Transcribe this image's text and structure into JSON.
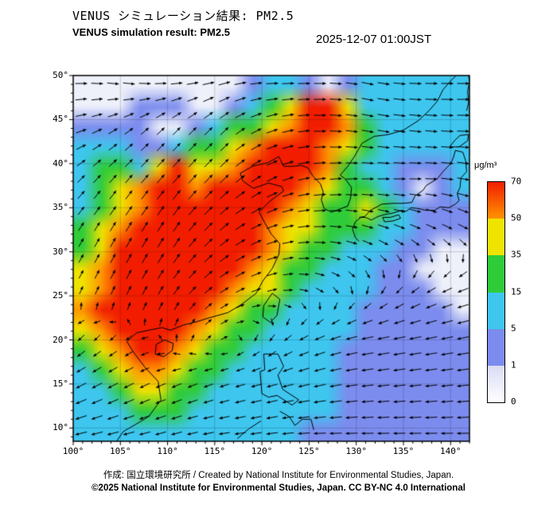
{
  "header": {
    "title_ja": "VENUS シミュレーション結果: PM2.5",
    "title_en": "VENUS simulation result: PM2.5",
    "timestamp": "2025-12-07 01:00JST"
  },
  "footer": {
    "credit": "作成: 国立環境研究所 / Created by National Institute for Environmental Studies, Japan.",
    "copyright": "©2025 National Institute for Environmental Studies, Japan. CC BY-NC 4.0 International"
  },
  "colorbar": {
    "unit": "μg/m³",
    "levels": [
      0,
      1,
      5,
      15,
      35,
      50,
      70
    ],
    "segment_colors": [
      [
        "#ffffff",
        "#d9dbf6"
      ],
      [
        "#7c8cee",
        "#7c8cee"
      ],
      [
        "#3ec6ef",
        "#3ec6ef"
      ],
      [
        "#2fcc3a",
        "#2fcc3a"
      ],
      [
        "#efe300",
        "#efe300"
      ],
      [
        "#ff9400",
        "#f21d00"
      ]
    ]
  },
  "chart_data": {
    "type": "heatmap",
    "overlay": "wind-quiver",
    "variable": "PM2.5",
    "units": "μg/m³",
    "title": "VENUS simulation result: PM2.5",
    "timestamp": "2025-12-07 01:00JST",
    "lon_range": [
      100,
      142
    ],
    "lat_range": [
      8.5,
      50
    ],
    "x_tick_labels": [
      "100°",
      "105°",
      "110°",
      "115°",
      "120°",
      "125°",
      "130°",
      "135°",
      "140°"
    ],
    "y_tick_labels": [
      "50°",
      "45°",
      "40°",
      "35°",
      "30°",
      "25°",
      "20°",
      "15°",
      "10°"
    ],
    "class_breaks": [
      1,
      5,
      15,
      35,
      50,
      70
    ],
    "class_colors": [
      "#eef0fa",
      "#7c8cee",
      "#3ec6ef",
      "#2fcc3a",
      "#efe300",
      "#ff9400",
      "#f21d00"
    ],
    "grid": {
      "comment": "PM2.5 concentration (μg/m³), rows north(lat 50) to south(lat 8.5), cols lon 100 to 142",
      "values": [
        [
          0.5,
          0.5,
          0.5,
          0.5,
          0.5,
          0.5,
          0.5,
          0.5,
          0.5,
          3,
          8,
          8,
          3,
          0.5,
          3,
          8,
          10,
          10,
          8,
          8,
          8
        ],
        [
          0.5,
          0.5,
          0.5,
          3,
          3,
          3,
          0.5,
          0.5,
          3,
          10,
          25,
          42,
          85,
          85,
          42,
          10,
          10,
          10,
          8,
          8,
          8
        ],
        [
          3,
          3,
          3,
          3,
          0.5,
          0.5,
          3,
          10,
          25,
          25,
          42,
          60,
          85,
          85,
          60,
          25,
          10,
          8,
          8,
          8,
          8
        ],
        [
          8,
          10,
          8,
          3,
          3,
          10,
          25,
          25,
          42,
          60,
          85,
          85,
          85,
          60,
          42,
          25,
          10,
          8,
          8,
          10,
          10
        ],
        [
          10,
          25,
          25,
          10,
          42,
          85,
          42,
          42,
          60,
          85,
          85,
          85,
          85,
          60,
          25,
          10,
          8,
          3,
          3,
          3,
          8
        ],
        [
          10,
          25,
          42,
          60,
          85,
          85,
          60,
          85,
          85,
          85,
          85,
          85,
          60,
          42,
          25,
          25,
          10,
          3,
          0.5,
          3,
          8
        ],
        [
          10,
          25,
          42,
          60,
          85,
          85,
          85,
          85,
          85,
          85,
          85,
          60,
          42,
          25,
          25,
          42,
          25,
          10,
          3,
          3,
          3
        ],
        [
          25,
          42,
          60,
          85,
          85,
          85,
          85,
          85,
          85,
          85,
          60,
          42,
          42,
          25,
          25,
          25,
          10,
          8,
          3,
          3,
          3
        ],
        [
          25,
          42,
          85,
          85,
          85,
          85,
          85,
          85,
          85,
          85,
          60,
          42,
          25,
          25,
          10,
          10,
          8,
          3,
          3,
          0.5,
          0.5
        ],
        [
          42,
          60,
          85,
          85,
          85,
          85,
          85,
          85,
          85,
          60,
          42,
          25,
          25,
          10,
          10,
          8,
          3,
          3,
          0.5,
          0.5,
          0.5
        ],
        [
          42,
          60,
          85,
          85,
          85,
          85,
          85,
          85,
          60,
          42,
          42,
          25,
          10,
          10,
          8,
          8,
          3,
          3,
          3,
          0.5,
          0.5
        ],
        [
          60,
          85,
          85,
          85,
          85,
          85,
          85,
          60,
          42,
          25,
          25,
          10,
          10,
          8,
          8,
          3,
          3,
          3,
          3,
          3,
          0.5
        ],
        [
          42,
          60,
          85,
          85,
          85,
          85,
          60,
          42,
          25,
          25,
          10,
          10,
          8,
          8,
          8,
          3,
          3,
          3,
          3,
          3,
          3
        ],
        [
          25,
          42,
          60,
          85,
          85,
          60,
          42,
          25,
          25,
          10,
          10,
          8,
          8,
          8,
          3,
          3,
          3,
          3,
          3,
          3,
          3
        ],
        [
          10,
          25,
          42,
          60,
          60,
          42,
          25,
          25,
          10,
          10,
          8,
          8,
          8,
          8,
          3,
          3,
          3,
          3,
          3,
          3,
          3
        ],
        [
          10,
          10,
          25,
          42,
          42,
          25,
          25,
          10,
          10,
          8,
          8,
          8,
          8,
          8,
          3,
          3,
          3,
          3,
          3,
          3,
          3
        ],
        [
          8,
          10,
          10,
          25,
          25,
          25,
          10,
          10,
          8,
          8,
          8,
          8,
          8,
          8,
          3,
          3,
          3,
          3,
          3,
          3,
          3
        ],
        [
          8,
          8,
          10,
          10,
          10,
          10,
          10,
          8,
          8,
          8,
          8,
          8,
          3,
          3,
          3,
          3,
          3,
          3,
          3,
          3,
          3
        ]
      ]
    },
    "wind": {
      "comment": "coarse wind vector field, rows north to south",
      "cols": 9,
      "rows": 8,
      "u": [
        1,
        1,
        1,
        1,
        1,
        1,
        1,
        1,
        1,
        0.8,
        0.6,
        0.5,
        0.6,
        0.9,
        1,
        1,
        1,
        1,
        0.5,
        0.5,
        0.6,
        0.7,
        0.8,
        1,
        1,
        1,
        1,
        0.3,
        0.4,
        0.5,
        0.7,
        0.9,
        1,
        0.9,
        0.8,
        0.7,
        0.2,
        0.3,
        0.4,
        0.6,
        0.7,
        0.5,
        0,
        -0.5,
        -0.8,
        -0.3,
        -0.2,
        0,
        0.2,
        -0.2,
        -0.7,
        -1,
        -1,
        -1,
        -0.8,
        -0.8,
        -0.7,
        -0.6,
        -0.8,
        -1,
        -1,
        -1,
        -1,
        -1,
        -0.9,
        -0.8,
        -0.8,
        -0.9,
        -1,
        -1,
        -1,
        -1
      ],
      "v": [
        0,
        -0.2,
        0,
        0.2,
        0,
        0,
        -0.2,
        0,
        0,
        0.2,
        0.4,
        0.5,
        0.6,
        0.3,
        0,
        -0.2,
        -0.1,
        0,
        0.5,
        0.6,
        0.7,
        0.7,
        0.4,
        0.1,
        0,
        0,
        -0.2,
        0.5,
        0.7,
        0.8,
        0.6,
        0.3,
        0,
        -0.3,
        -0.4,
        -0.4,
        0.4,
        0.6,
        0.6,
        0.4,
        0.2,
        -0.2,
        -0.4,
        -0.4,
        -0.3,
        -0.3,
        -0.2,
        0.2,
        0.1,
        -0.3,
        -0.3,
        -0.2,
        -0.2,
        -0.2,
        -0.4,
        -0.4,
        -0.3,
        -0.2,
        -0.2,
        -0.2,
        -0.1,
        -0.1,
        -0.1,
        -0.2,
        -0.2,
        -0.2,
        -0.1,
        -0.1,
        0,
        0,
        0,
        0
      ]
    },
    "coastlines": [
      [
        [
          104.6,
          8.5
        ],
        [
          105.3,
          9.6
        ],
        [
          106.6,
          10.4
        ],
        [
          108.0,
          11.3
        ],
        [
          109.3,
          13.2
        ],
        [
          109.0,
          15.3
        ],
        [
          107.6,
          16.9
        ],
        [
          106.4,
          18.6
        ],
        [
          105.7,
          19.8
        ],
        [
          106.7,
          20.8
        ],
        [
          108.0,
          21.1
        ],
        [
          109.4,
          21.4
        ],
        [
          110.3,
          21.1
        ],
        [
          111.7,
          21.7
        ],
        [
          113.2,
          22.1
        ],
        [
          114.4,
          22.5
        ],
        [
          116.4,
          23.1
        ],
        [
          117.8,
          24.0
        ],
        [
          119.4,
          25.3
        ],
        [
          120.1,
          26.7
        ],
        [
          121.1,
          28.1
        ],
        [
          121.8,
          29.7
        ],
        [
          121.9,
          30.9
        ],
        [
          121.0,
          32.0
        ],
        [
          120.3,
          33.3
        ],
        [
          119.7,
          34.5
        ],
        [
          120.8,
          35.7
        ],
        [
          122.3,
          36.9
        ],
        [
          122.1,
          37.4
        ],
        [
          120.7,
          37.8
        ],
        [
          119.1,
          37.2
        ],
        [
          118.0,
          38.0
        ],
        [
          117.7,
          38.9
        ],
        [
          119.0,
          39.7
        ],
        [
          120.6,
          40.1
        ],
        [
          121.8,
          40.8
        ],
        [
          122.3,
          39.7
        ],
        [
          123.3,
          39.7
        ],
        [
          124.2,
          39.8
        ],
        [
          124.9,
          39.5
        ],
        [
          125.4,
          38.6
        ],
        [
          126.2,
          37.7
        ],
        [
          126.5,
          36.8
        ],
        [
          126.3,
          35.9
        ],
        [
          126.6,
          34.9
        ],
        [
          127.4,
          34.5
        ],
        [
          128.4,
          34.9
        ],
        [
          129.1,
          35.2
        ],
        [
          129.4,
          36.1
        ],
        [
          129.5,
          37.3
        ],
        [
          128.8,
          38.3
        ],
        [
          128.3,
          38.7
        ],
        [
          129.1,
          39.7
        ],
        [
          129.8,
          40.8
        ],
        [
          130.6,
          42.3
        ],
        [
          131.9,
          43.1
        ],
        [
          133.4,
          43.3
        ],
        [
          135.0,
          43.8
        ],
        [
          136.6,
          44.9
        ],
        [
          137.7,
          46.0
        ],
        [
          138.6,
          47.1
        ],
        [
          139.2,
          48.4
        ],
        [
          140.2,
          49.6
        ],
        [
          140.6,
          50.0
        ]
      ],
      [
        [
          130.3,
          31.2
        ],
        [
          129.9,
          31.6
        ],
        [
          129.6,
          32.6
        ],
        [
          129.9,
          33.4
        ],
        [
          130.5,
          33.9
        ],
        [
          131.0,
          33.9
        ],
        [
          131.6,
          33.6
        ],
        [
          132.3,
          34.0
        ],
        [
          132.9,
          34.2
        ],
        [
          133.9,
          34.4
        ],
        [
          134.8,
          34.7
        ],
        [
          135.3,
          34.6
        ],
        [
          135.8,
          35.0
        ],
        [
          136.6,
          34.9
        ],
        [
          137.4,
          34.7
        ],
        [
          138.3,
          34.7
        ],
        [
          138.9,
          35.1
        ],
        [
          139.8,
          35.0
        ],
        [
          140.5,
          35.4
        ],
        [
          140.9,
          35.8
        ],
        [
          140.7,
          36.6
        ],
        [
          141.0,
          37.3
        ],
        [
          141.1,
          38.4
        ],
        [
          141.7,
          39.1
        ],
        [
          141.6,
          40.3
        ],
        [
          141.3,
          41.3
        ],
        [
          140.5,
          41.5
        ],
        [
          140.3,
          40.7
        ],
        [
          140.0,
          40.0
        ],
        [
          139.2,
          39.1
        ],
        [
          138.6,
          38.3
        ],
        [
          137.4,
          37.5
        ],
        [
          137.1,
          37.0
        ],
        [
          136.2,
          36.3
        ],
        [
          135.9,
          35.6
        ],
        [
          135.0,
          35.5
        ],
        [
          133.9,
          35.5
        ],
        [
          132.7,
          35.4
        ],
        [
          131.5,
          34.7
        ],
        [
          130.9,
          34.0
        ],
        [
          130.3,
          33.9
        ]
      ],
      [
        [
          132.8,
          33.9
        ],
        [
          133.6,
          33.9
        ],
        [
          134.5,
          34.2
        ],
        [
          134.7,
          33.8
        ],
        [
          133.9,
          33.5
        ],
        [
          133.0,
          33.4
        ],
        [
          132.8,
          33.9
        ]
      ],
      [
        [
          139.9,
          41.9
        ],
        [
          140.9,
          41.9
        ],
        [
          141.8,
          42.6
        ],
        [
          141.9,
          43.3
        ],
        [
          141.0,
          43.2
        ],
        [
          140.4,
          42.6
        ],
        [
          139.9,
          41.9
        ]
      ],
      [
        [
          141.7,
          46.0
        ],
        [
          141.9,
          46.9
        ],
        [
          141.8,
          48.2
        ],
        [
          142.0,
          49.3
        ],
        [
          141.9,
          50.0
        ]
      ],
      [
        [
          120.1,
          22.6
        ],
        [
          120.9,
          22.0
        ],
        [
          121.6,
          22.8
        ],
        [
          121.9,
          24.6
        ],
        [
          121.1,
          25.3
        ],
        [
          120.2,
          23.9
        ],
        [
          120.1,
          22.6
        ]
      ],
      [
        [
          108.7,
          18.4
        ],
        [
          109.6,
          18.1
        ],
        [
          110.5,
          18.8
        ],
        [
          110.6,
          19.6
        ],
        [
          109.7,
          20.0
        ],
        [
          108.8,
          19.5
        ],
        [
          108.7,
          18.4
        ]
      ],
      [
        [
          120.0,
          13.9
        ],
        [
          119.8,
          16.4
        ],
        [
          120.3,
          16.6
        ],
        [
          120.2,
          18.4
        ],
        [
          121.7,
          18.4
        ],
        [
          122.3,
          17.0
        ],
        [
          121.7,
          16.0
        ],
        [
          122.2,
          14.4
        ],
        [
          123.9,
          13.2
        ],
        [
          123.2,
          12.6
        ],
        [
          121.6,
          13.7
        ],
        [
          120.7,
          13.5
        ],
        [
          120.0,
          13.9
        ]
      ],
      [
        [
          121.9,
          11.9
        ],
        [
          122.9,
          11.3
        ],
        [
          123.5,
          10.3
        ],
        [
          124.3,
          11.0
        ],
        [
          125.2,
          11.0
        ],
        [
          125.5,
          9.8
        ]
      ],
      [
        [
          119.9,
          10.8
        ],
        [
          118.6,
          9.9
        ],
        [
          117.4,
          8.8
        ]
      ]
    ]
  }
}
